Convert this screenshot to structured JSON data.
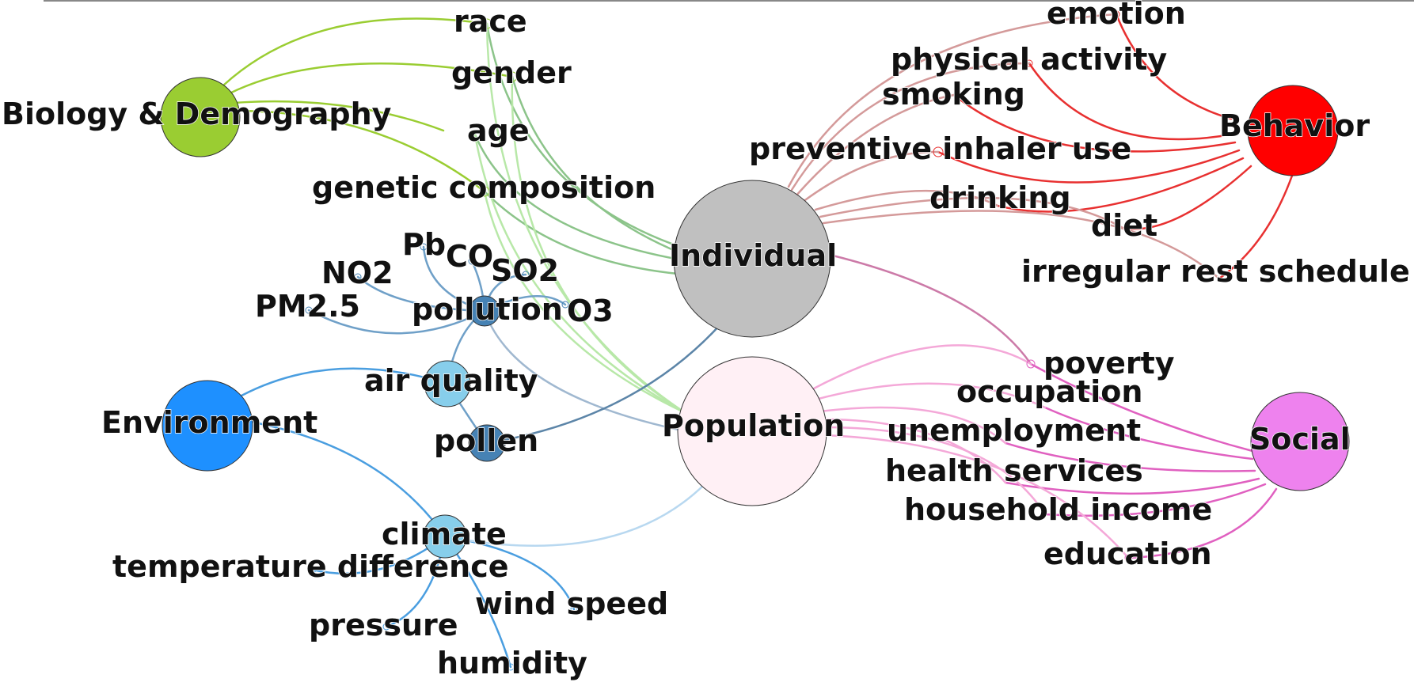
{
  "diagram": {
    "categories": [
      {
        "id": "biology",
        "label": "Biology & Demography",
        "color": "#9acd32",
        "factors": [
          "race",
          "gender",
          "age",
          "genetic composition"
        ]
      },
      {
        "id": "environment",
        "label": "Environment",
        "color": "#1e90ff",
        "factors": [
          "air quality",
          "pollen",
          "climate"
        ]
      },
      {
        "id": "behavior",
        "label": "Behavior",
        "color": "#ff0000",
        "factors": [
          "emotion",
          "physical activity",
          "smoking",
          "preventive inhaler use",
          "drinking",
          "diet",
          "irregular rest schedule"
        ]
      },
      {
        "id": "social",
        "label": "Social",
        "color": "#ee82ee",
        "factors": [
          "poverty",
          "occupation",
          "unemployment",
          "health services",
          "household income",
          "education"
        ]
      }
    ],
    "levels": [
      {
        "id": "individual",
        "label": "Individual",
        "color": "#c0c0c0"
      },
      {
        "id": "population",
        "label": "Population",
        "color": "#fff0f5"
      }
    ],
    "intermediate_nodes": [
      {
        "id": "pollution",
        "label": "pollution",
        "color": "#4682b4",
        "factors": [
          "Pb",
          "CO",
          "NO2",
          "SO2",
          "PM2.5",
          "O3"
        ]
      },
      {
        "id": "air_quality",
        "label": "air quality",
        "color": "#87ceeb"
      },
      {
        "id": "pollen",
        "label": "pollen",
        "color": "#4682b4"
      },
      {
        "id": "climate",
        "label": "climate",
        "color": "#87ceeb",
        "factors": [
          "temperature difference",
          "pressure",
          "humidity",
          "wind speed"
        ]
      }
    ],
    "edge_colors": {
      "biology": "#9acd32",
      "biology_light": "#b8e8a8",
      "biology_mid": "#8cc48a",
      "environment": "#4a9ee0",
      "pollution": "#6fa0c8",
      "pollen": "#5c85a8",
      "climate_light": "#b8d8f0",
      "behavior": "#e83030",
      "behavior_muted": "#d49a9a",
      "social": "#e060c0",
      "social_light": "#f4a8d8",
      "individual_social": "#cc7aa8"
    }
  }
}
